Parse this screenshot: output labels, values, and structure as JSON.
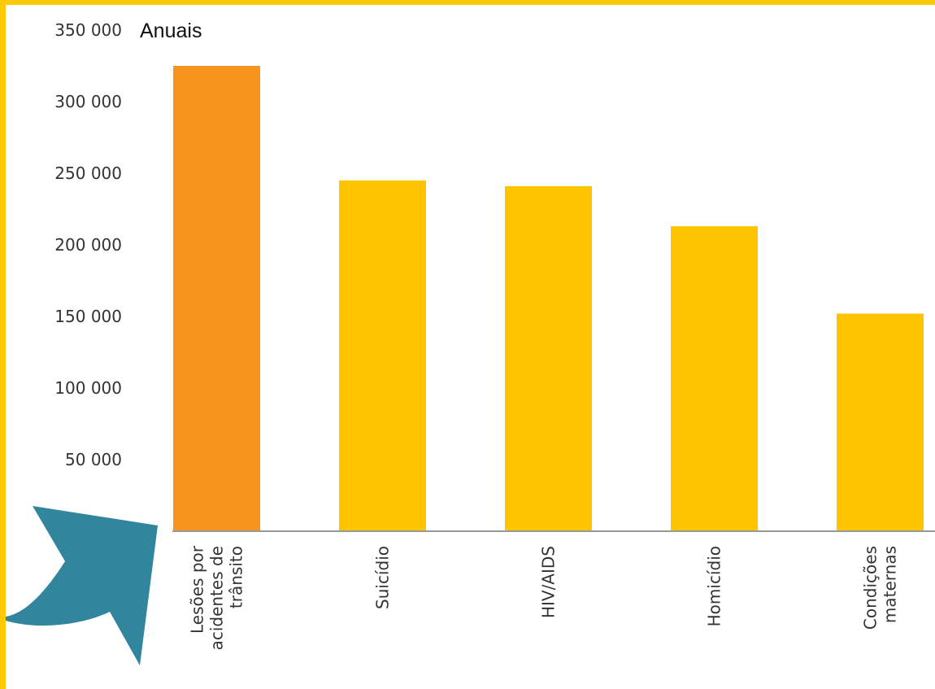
{
  "chart_data": {
    "type": "bar",
    "units_label": "Anuais",
    "categories": [
      [
        "Lesões por",
        "acidentes de",
        "trânsito"
      ],
      [
        "Suicídio"
      ],
      [
        "HIV/AIDS"
      ],
      [
        "Homicídio"
      ],
      [
        "Condições",
        "maternas"
      ]
    ],
    "values": [
      325000,
      245000,
      241000,
      213000,
      152000
    ],
    "highlight_index": 0,
    "colors": {
      "bar": "#FFC400",
      "highlight": "#F7941D",
      "axis": "#999999",
      "arrow": "#31859C",
      "frame": "#FFC907"
    },
    "yticks": [
      {
        "value": 50000,
        "label": "50 000"
      },
      {
        "value": 100000,
        "label": "100 000"
      },
      {
        "value": 150000,
        "label": "150 000"
      },
      {
        "value": 200000,
        "label": "200 000"
      },
      {
        "value": 250000,
        "label": "250 000"
      },
      {
        "value": 300000,
        "label": "300 000"
      },
      {
        "value": 350000,
        "label": "350 000"
      }
    ],
    "ylim": [
      0,
      350000
    ],
    "grid": false,
    "legend": "none",
    "annotation_icon": "curved-arrow-icon"
  }
}
